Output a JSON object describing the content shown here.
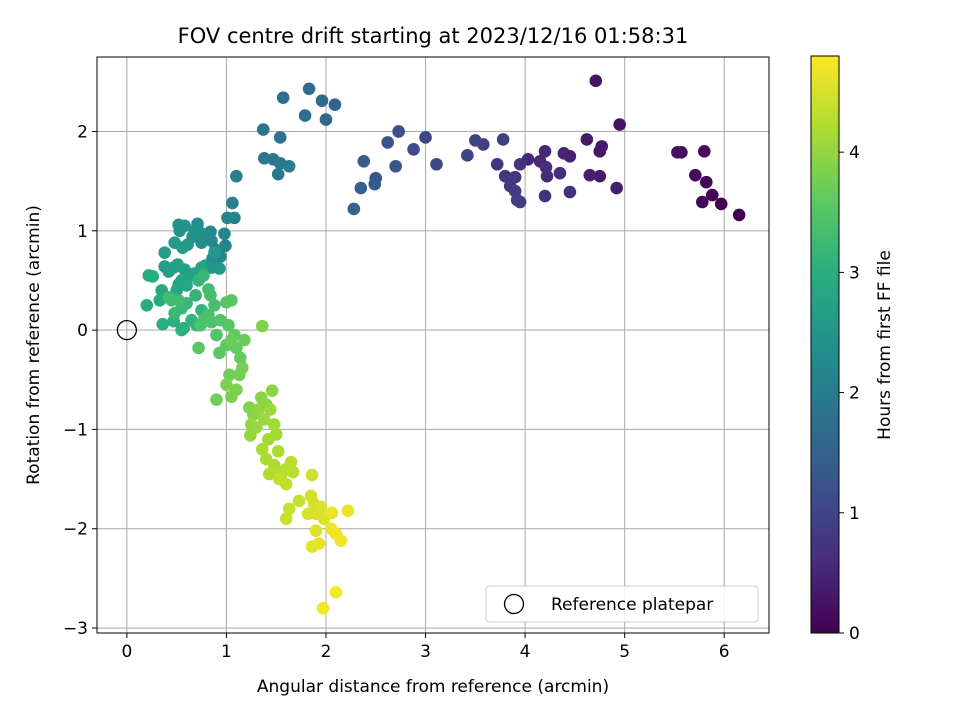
{
  "chart_data": {
    "type": "scatter",
    "title": "FOV centre drift starting at 2023/12/16 01:58:31",
    "xlabel": "Angular distance from reference (arcmin)",
    "ylabel": "Rotation from reference (arcmin)",
    "xlim": [
      -0.3,
      6.45
    ],
    "ylim": [
      -3.05,
      2.75
    ],
    "xticks": [
      0,
      1,
      2,
      3,
      4,
      5,
      6
    ],
    "yticks": [
      -3,
      -2,
      -1,
      0,
      1,
      2
    ],
    "xtick_labels": [
      "0",
      "1",
      "2",
      "3",
      "4",
      "5",
      "6"
    ],
    "ytick_labels": [
      "−3",
      "−2",
      "−1",
      "0",
      "1",
      "2"
    ],
    "grid": true,
    "colorbar": {
      "label": "Hours from first FF file",
      "colormap": "viridis",
      "range": [
        0,
        4.8
      ],
      "ticks": [
        0,
        1,
        2,
        3,
        4
      ],
      "tick_labels": [
        "0",
        "1",
        "2",
        "3",
        "4"
      ]
    },
    "legend": {
      "position": "lower-right",
      "entries": [
        {
          "label": "Reference platepar",
          "marker": "open-circle",
          "color": "#000000"
        }
      ]
    },
    "reference_point": {
      "x": 0,
      "y": 0
    },
    "points": [
      [
        6.15,
        1.16,
        0.0
      ],
      [
        5.97,
        1.27,
        0.03
      ],
      [
        5.88,
        1.36,
        0.06
      ],
      [
        5.82,
        1.49,
        0.09
      ],
      [
        5.78,
        1.29,
        0.11
      ],
      [
        5.71,
        1.56,
        0.14
      ],
      [
        5.8,
        1.8,
        0.16
      ],
      [
        5.57,
        1.79,
        0.19
      ],
      [
        5.53,
        1.79,
        0.21
      ],
      [
        4.95,
        2.07,
        0.24
      ],
      [
        4.71,
        2.51,
        0.26
      ],
      [
        4.75,
        1.8,
        0.29
      ],
      [
        4.77,
        1.85,
        0.31
      ],
      [
        4.62,
        1.92,
        0.34
      ],
      [
        4.75,
        1.55,
        0.36
      ],
      [
        4.65,
        1.56,
        0.39
      ],
      [
        4.92,
        1.43,
        0.42
      ],
      [
        4.45,
        1.75,
        0.44
      ],
      [
        4.39,
        1.78,
        0.47
      ],
      [
        4.2,
        1.8,
        0.5
      ],
      [
        4.15,
        1.7,
        0.52
      ],
      [
        4.03,
        1.72,
        0.55
      ],
      [
        4.22,
        1.55,
        0.57
      ],
      [
        4.21,
        1.64,
        0.6
      ],
      [
        4.35,
        1.58,
        0.62
      ],
      [
        4.45,
        1.39,
        0.65
      ],
      [
        4.2,
        1.35,
        0.67
      ],
      [
        3.95,
        1.67,
        0.7
      ],
      [
        3.9,
        1.54,
        0.73
      ],
      [
        3.8,
        1.55,
        0.75
      ],
      [
        3.72,
        1.67,
        0.78
      ],
      [
        3.85,
        1.45,
        0.8
      ],
      [
        3.9,
        1.4,
        0.82
      ],
      [
        3.92,
        1.31,
        0.85
      ],
      [
        3.95,
        1.29,
        0.87
      ],
      [
        3.78,
        1.92,
        0.9
      ],
      [
        3.58,
        1.87,
        0.93
      ],
      [
        3.5,
        1.91,
        0.95
      ],
      [
        3.42,
        1.76,
        0.98
      ],
      [
        3.0,
        1.94,
        1.0
      ],
      [
        3.11,
        1.67,
        1.05
      ],
      [
        2.88,
        1.82,
        1.1
      ],
      [
        2.73,
        2.0,
        1.15
      ],
      [
        2.62,
        1.89,
        1.2
      ],
      [
        2.7,
        1.65,
        1.25
      ],
      [
        2.5,
        1.53,
        1.3
      ],
      [
        2.49,
        1.47,
        1.35
      ],
      [
        2.38,
        1.7,
        1.4
      ],
      [
        2.35,
        1.43,
        1.45
      ],
      [
        2.28,
        1.22,
        1.5
      ],
      [
        2.09,
        2.27,
        1.55
      ],
      [
        2.0,
        2.12,
        1.6
      ],
      [
        1.96,
        2.31,
        1.65
      ],
      [
        1.83,
        2.43,
        1.7
      ],
      [
        1.79,
        2.16,
        1.73
      ],
      [
        1.57,
        2.34,
        1.76
      ],
      [
        1.54,
        1.94,
        1.79
      ],
      [
        1.37,
        2.02,
        1.82
      ],
      [
        1.47,
        1.72,
        1.85
      ],
      [
        1.38,
        1.73,
        1.88
      ],
      [
        1.54,
        1.68,
        1.91
      ],
      [
        1.52,
        1.57,
        1.94
      ],
      [
        1.63,
        1.65,
        1.97
      ],
      [
        1.1,
        1.55,
        2.0
      ],
      [
        1.06,
        1.28,
        2.05
      ],
      [
        1.08,
        1.13,
        2.08
      ],
      [
        1.01,
        1.13,
        2.11
      ],
      [
        0.98,
        0.97,
        2.14
      ],
      [
        0.99,
        0.85,
        2.17
      ],
      [
        0.94,
        0.74,
        2.2
      ],
      [
        0.84,
        0.99,
        2.23
      ],
      [
        0.85,
        0.9,
        2.26
      ],
      [
        0.89,
        0.81,
        2.28
      ],
      [
        0.86,
        0.72,
        2.3
      ],
      [
        0.76,
        0.97,
        2.32
      ],
      [
        0.75,
        0.88,
        2.34
      ],
      [
        0.71,
        1.07,
        2.36
      ],
      [
        0.68,
        1.0,
        2.38
      ],
      [
        0.66,
        0.94,
        2.4
      ],
      [
        0.58,
        1.05,
        2.42
      ],
      [
        0.52,
        1.06,
        2.44
      ],
      [
        0.53,
        1.0,
        2.46
      ],
      [
        0.79,
        0.65,
        2.48
      ],
      [
        0.85,
        0.63,
        2.5
      ],
      [
        0.88,
        0.78,
        2.52
      ],
      [
        0.93,
        0.62,
        2.54
      ],
      [
        0.61,
        0.86,
        2.56
      ],
      [
        0.56,
        0.83,
        2.58
      ],
      [
        0.48,
        0.88,
        2.6
      ],
      [
        0.38,
        0.78,
        2.62
      ],
      [
        0.42,
        0.59,
        2.64
      ],
      [
        0.38,
        0.64,
        2.66
      ],
      [
        0.47,
        0.63,
        2.68
      ],
      [
        0.51,
        0.66,
        2.7
      ],
      [
        0.58,
        0.61,
        2.72
      ],
      [
        0.63,
        0.55,
        2.74
      ],
      [
        0.68,
        0.57,
        2.76
      ],
      [
        0.75,
        0.63,
        2.78
      ],
      [
        0.55,
        0.5,
        2.8
      ],
      [
        0.52,
        0.46,
        2.82
      ],
      [
        0.6,
        0.45,
        2.84
      ],
      [
        0.5,
        0.4,
        2.86
      ],
      [
        0.35,
        0.4,
        2.88
      ],
      [
        0.38,
        0.33,
        2.9
      ],
      [
        0.33,
        0.3,
        2.92
      ],
      [
        0.22,
        0.55,
        2.94
      ],
      [
        0.26,
        0.54,
        2.96
      ],
      [
        0.2,
        0.25,
        2.98
      ],
      [
        0.36,
        0.06,
        3.0
      ],
      [
        0.47,
        0.09,
        3.02
      ],
      [
        0.57,
        0.02,
        3.04
      ],
      [
        0.55,
        0.0,
        3.06
      ],
      [
        0.7,
        0.05,
        3.08
      ],
      [
        0.65,
        0.1,
        3.1
      ],
      [
        0.75,
        0.2,
        3.12
      ],
      [
        0.69,
        0.35,
        3.14
      ],
      [
        0.72,
        0.5,
        3.16
      ],
      [
        0.77,
        0.55,
        3.18
      ],
      [
        0.6,
        0.27,
        3.2
      ],
      [
        0.55,
        0.22,
        3.22
      ],
      [
        0.48,
        0.17,
        3.24
      ],
      [
        0.45,
        0.3,
        3.26
      ],
      [
        0.42,
        0.33,
        3.28
      ],
      [
        0.52,
        0.3,
        3.3
      ],
      [
        0.82,
        0.41,
        3.32
      ],
      [
        0.84,
        0.35,
        3.34
      ],
      [
        0.88,
        0.25,
        3.36
      ],
      [
        0.82,
        0.15,
        3.38
      ],
      [
        0.78,
        0.12,
        3.4
      ],
      [
        0.74,
        0.05,
        3.42
      ],
      [
        0.85,
        0.08,
        3.44
      ],
      [
        0.9,
        -0.05,
        3.46
      ],
      [
        0.94,
        0.1,
        3.48
      ],
      [
        1.02,
        0.05,
        3.5
      ],
      [
        1.0,
        0.28,
        3.52
      ],
      [
        1.05,
        0.3,
        3.54
      ],
      [
        0.72,
        -0.18,
        3.56
      ],
      [
        0.93,
        -0.23,
        3.58
      ],
      [
        1.0,
        -0.15,
        3.6
      ],
      [
        1.08,
        -0.05,
        3.62
      ],
      [
        1.1,
        -0.18,
        3.64
      ],
      [
        1.14,
        -0.28,
        3.66
      ],
      [
        1.18,
        -0.1,
        3.68
      ],
      [
        1.05,
        -0.1,
        3.7
      ],
      [
        0.9,
        -0.7,
        3.72
      ],
      [
        1.03,
        -0.45,
        3.74
      ],
      [
        1.13,
        -0.45,
        3.76
      ],
      [
        1.16,
        -0.38,
        3.78
      ],
      [
        1.05,
        -0.67,
        3.8
      ],
      [
        1.0,
        -0.55,
        3.82
      ],
      [
        1.1,
        -0.6,
        3.84
      ],
      [
        1.36,
        0.04,
        3.86
      ],
      [
        1.23,
        -0.78,
        3.88
      ],
      [
        1.27,
        -0.85,
        3.9
      ],
      [
        1.35,
        -0.68,
        3.92
      ],
      [
        1.46,
        -0.61,
        3.94
      ],
      [
        1.4,
        -0.75,
        3.96
      ],
      [
        1.32,
        -0.8,
        3.98
      ],
      [
        1.25,
        -0.95,
        4.0
      ],
      [
        1.24,
        -1.06,
        4.02
      ],
      [
        1.3,
        -0.98,
        4.04
      ],
      [
        1.38,
        -0.9,
        4.06
      ],
      [
        1.44,
        -0.8,
        4.08
      ],
      [
        1.48,
        -0.95,
        4.1
      ],
      [
        1.5,
        -1.05,
        4.12
      ],
      [
        1.42,
        -1.1,
        4.14
      ],
      [
        1.36,
        -1.2,
        4.16
      ],
      [
        1.4,
        -1.3,
        4.18
      ],
      [
        1.52,
        -1.22,
        4.2
      ],
      [
        1.48,
        -1.36,
        4.22
      ],
      [
        1.43,
        -1.45,
        4.24
      ],
      [
        1.55,
        -1.45,
        4.26
      ],
      [
        1.6,
        -1.4,
        4.28
      ],
      [
        1.65,
        -1.33,
        4.3
      ],
      [
        1.67,
        -1.43,
        4.32
      ],
      [
        1.6,
        -1.55,
        4.34
      ],
      [
        1.53,
        -1.5,
        4.36
      ],
      [
        1.73,
        -1.72,
        4.38
      ],
      [
        1.63,
        -1.8,
        4.4
      ],
      [
        1.6,
        -1.9,
        4.42
      ],
      [
        1.86,
        -1.46,
        4.44
      ],
      [
        1.85,
        -1.67,
        4.46
      ],
      [
        1.88,
        -1.75,
        4.48
      ],
      [
        1.82,
        -1.85,
        4.5
      ],
      [
        1.9,
        -1.85,
        4.52
      ],
      [
        1.95,
        -1.78,
        4.54
      ],
      [
        1.98,
        -1.9,
        4.56
      ],
      [
        1.9,
        -2.02,
        4.58
      ],
      [
        1.86,
        -2.18,
        4.6
      ],
      [
        1.93,
        -2.15,
        4.62
      ],
      [
        2.06,
        -1.84,
        4.64
      ],
      [
        2.22,
        -1.82,
        4.66
      ],
      [
        2.05,
        -2.0,
        4.68
      ],
      [
        2.1,
        -2.05,
        4.7
      ],
      [
        2.15,
        -2.12,
        4.72
      ],
      [
        2.1,
        -2.64,
        4.74
      ],
      [
        1.97,
        -2.8,
        4.76
      ]
    ]
  }
}
